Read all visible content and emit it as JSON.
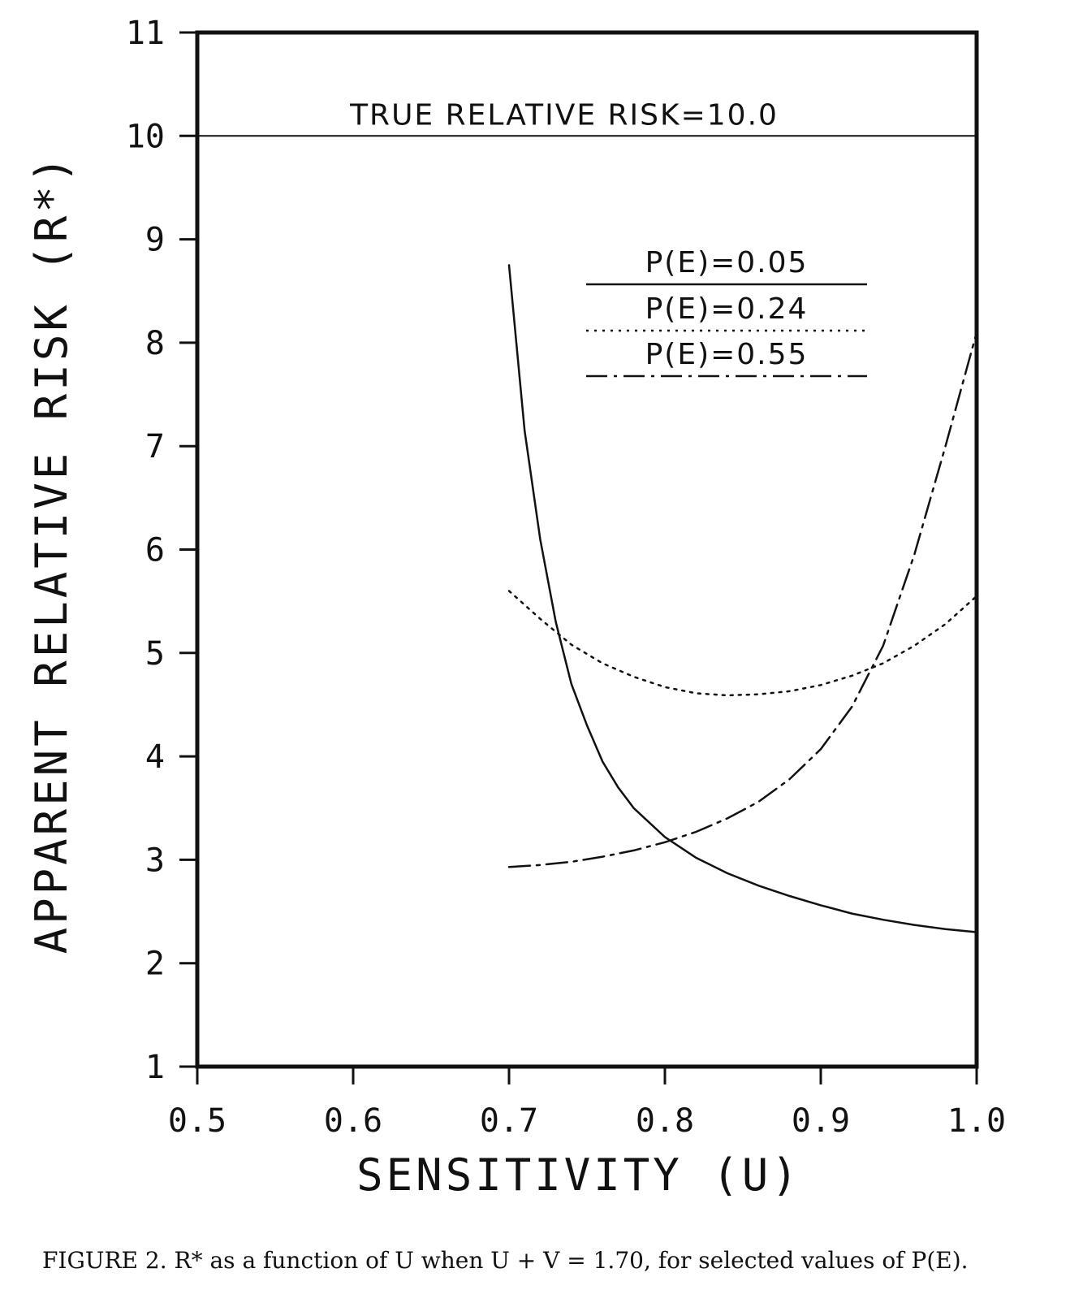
{
  "chart_data": {
    "type": "line",
    "xlabel": "SENSITIVITY (U)",
    "ylabel": "APPARENT RELATIVE RISK (R*)",
    "xlim": [
      0.5,
      1.0
    ],
    "ylim": [
      1,
      11
    ],
    "x_ticks": [
      "0.5",
      "0.6",
      "0.7",
      "0.8",
      "0.9",
      "1.0"
    ],
    "y_ticks": [
      "1",
      "2",
      "3",
      "4",
      "5",
      "6",
      "7",
      "8",
      "9",
      "10",
      "11"
    ],
    "grid": false,
    "legend_position": "top-right",
    "reference_line": {
      "y": 10.0,
      "label": "TRUE RELATIVE RISK=10.0"
    },
    "series": [
      {
        "name": "P(E)=0.05",
        "style": "solid",
        "x": [
          0.7,
          0.71,
          0.72,
          0.73,
          0.74,
          0.75,
          0.76,
          0.77,
          0.78,
          0.8,
          0.82,
          0.84,
          0.86,
          0.88,
          0.9,
          0.92,
          0.94,
          0.96,
          0.98,
          1.0
        ],
        "y": [
          8.75,
          7.15,
          6.1,
          5.3,
          4.7,
          4.3,
          3.95,
          3.7,
          3.5,
          3.22,
          3.02,
          2.87,
          2.75,
          2.65,
          2.56,
          2.48,
          2.42,
          2.37,
          2.33,
          2.3
        ]
      },
      {
        "name": "P(E)=0.24",
        "style": "dotted",
        "x": [
          0.7,
          0.72,
          0.74,
          0.76,
          0.78,
          0.8,
          0.82,
          0.84,
          0.86,
          0.88,
          0.9,
          0.92,
          0.94,
          0.96,
          0.98,
          1.0
        ],
        "y": [
          5.6,
          5.33,
          5.08,
          4.9,
          4.77,
          4.67,
          4.61,
          4.59,
          4.6,
          4.63,
          4.69,
          4.78,
          4.9,
          5.07,
          5.28,
          5.55
        ]
      },
      {
        "name": "P(E)=0.55",
        "style": "dash-dot",
        "x": [
          0.7,
          0.72,
          0.74,
          0.76,
          0.78,
          0.8,
          0.82,
          0.84,
          0.86,
          0.88,
          0.9,
          0.92,
          0.94,
          0.96,
          0.98,
          1.0
        ],
        "y": [
          2.93,
          2.95,
          2.98,
          3.03,
          3.09,
          3.17,
          3.27,
          3.4,
          3.56,
          3.78,
          4.07,
          4.48,
          5.07,
          5.95,
          7.0,
          8.1
        ]
      }
    ]
  },
  "caption": {
    "prefix": "FIGURE 2.",
    "text": "R* as a function of U when U + V = 1.70, for selected values of P(E)."
  }
}
